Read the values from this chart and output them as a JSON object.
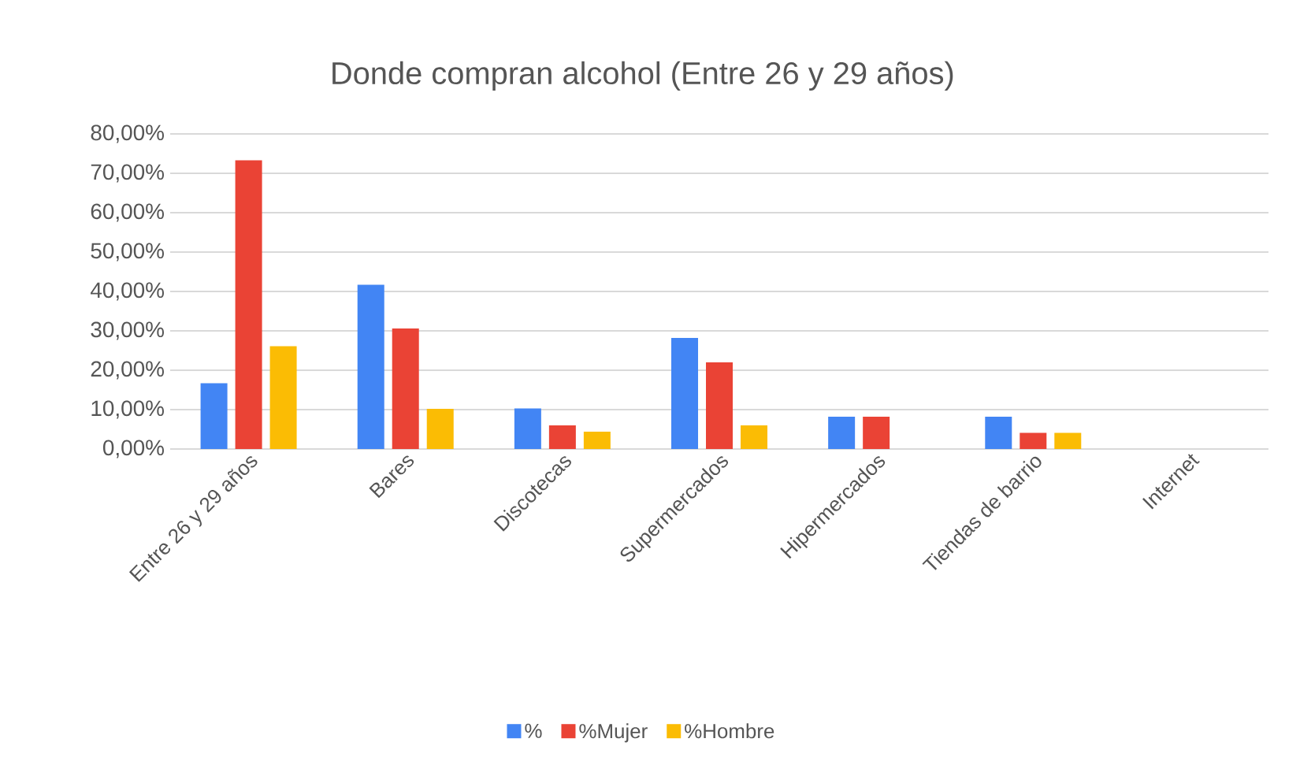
{
  "chart_data": {
    "type": "bar",
    "title": "Donde compran alcohol (Entre 26 y 29 años)",
    "categories": [
      "Entre 26 y 29 años",
      "Bares",
      "Discotecas",
      "Supermercados",
      "Hipermercados",
      "Tiendas de barrio",
      "Internet"
    ],
    "series": [
      {
        "name": "%",
        "color": "#4285f4",
        "values": [
          16.7,
          41.7,
          10.3,
          28.2,
          8.2,
          8.2,
          0
        ]
      },
      {
        "name": "%Mujer",
        "color": "#ea4335",
        "values": [
          73.3,
          30.6,
          6.0,
          22.0,
          8.2,
          4.1,
          0
        ]
      },
      {
        "name": "%Hombre",
        "color": "#fbbc04",
        "values": [
          26.1,
          10.2,
          4.4,
          6.0,
          0,
          4.1,
          0
        ]
      }
    ],
    "ylim": [
      0,
      80
    ],
    "yticks": [
      {
        "value": 0,
        "label": "0,00%"
      },
      {
        "value": 10,
        "label": "10,00%"
      },
      {
        "value": 20,
        "label": "20,00%"
      },
      {
        "value": 30,
        "label": "30,00%"
      },
      {
        "value": 40,
        "label": "40,00%"
      },
      {
        "value": 50,
        "label": "50,00%"
      },
      {
        "value": 60,
        "label": "60,00%"
      },
      {
        "value": 70,
        "label": "70,00%"
      },
      {
        "value": 80,
        "label": "80,00%"
      }
    ],
    "grid": "y",
    "legend": "bottom"
  }
}
